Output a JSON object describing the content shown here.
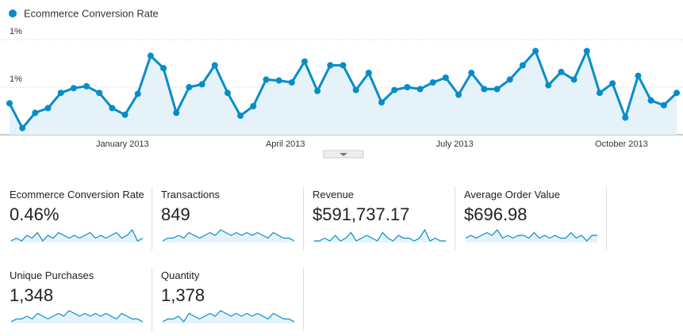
{
  "chart_data": {
    "type": "line",
    "series": [
      {
        "name": "Ecommerce Conversion Rate",
        "color": "#058dc7",
        "values": [
          0.33,
          0.07,
          0.23,
          0.28,
          0.44,
          0.49,
          0.51,
          0.44,
          0.28,
          0.21,
          0.43,
          0.83,
          0.7,
          0.23,
          0.5,
          0.53,
          0.73,
          0.44,
          0.2,
          0.3,
          0.58,
          0.57,
          0.55,
          0.77,
          0.46,
          0.73,
          0.73,
          0.47,
          0.65,
          0.34,
          0.47,
          0.5,
          0.48,
          0.55,
          0.6,
          0.42,
          0.65,
          0.48,
          0.48,
          0.58,
          0.73,
          0.88,
          0.52,
          0.66,
          0.58,
          0.88,
          0.44,
          0.54,
          0.18,
          0.62,
          0.36,
          0.31,
          0.44
        ]
      }
    ],
    "xlim": [
      0,
      52
    ],
    "xticks": [
      {
        "value": 8.8,
        "label": "January 2013"
      },
      {
        "value": 21.5,
        "label": "April 2013"
      },
      {
        "value": 34.7,
        "label": "July 2013"
      },
      {
        "value": 47.7,
        "label": "October 2013"
      }
    ],
    "ylim": [
      0,
      1.125
    ],
    "yticks": [
      {
        "value": 1.0,
        "label": "1%"
      },
      {
        "value": 0.5,
        "label": "1%"
      }
    ],
    "grid": true
  },
  "scorecards": [
    {
      "label": "Ecommerce Conversion Rate",
      "value": "0.46%",
      "sparkline": [
        4,
        5,
        4,
        6,
        5,
        7,
        4,
        6,
        5,
        7,
        6,
        5,
        6,
        5,
        6,
        7,
        5,
        6,
        5,
        6,
        7,
        5,
        6,
        8,
        4,
        5
      ]
    },
    {
      "label": "Transactions",
      "value": "849",
      "sparkline": [
        3,
        4,
        4,
        5,
        4,
        6,
        5,
        4,
        5,
        6,
        5,
        7,
        6,
        5,
        6,
        5,
        6,
        5,
        6,
        5,
        4,
        6,
        5,
        4,
        4,
        3
      ]
    },
    {
      "label": "Revenue",
      "value": "$591,737.17",
      "sparkline": [
        3,
        3,
        4,
        3,
        5,
        3,
        4,
        6,
        3,
        4,
        5,
        4,
        3,
        6,
        4,
        3,
        5,
        4,
        4,
        3,
        4,
        7,
        3,
        4,
        3,
        3
      ]
    },
    {
      "label": "Average Order Value",
      "value": "$696.98",
      "sparkline": [
        5,
        6,
        5,
        6,
        7,
        6,
        8,
        5,
        6,
        5,
        6,
        6,
        5,
        7,
        5,
        6,
        5,
        6,
        5,
        5,
        7,
        5,
        6,
        4,
        6,
        6
      ]
    },
    {
      "label": "Unique Purchases",
      "value": "1,348",
      "sparkline": [
        3,
        4,
        4,
        5,
        4,
        6,
        5,
        4,
        5,
        6,
        5,
        7,
        6,
        5,
        6,
        5,
        6,
        5,
        6,
        5,
        4,
        6,
        5,
        4,
        4,
        3
      ]
    },
    {
      "label": "Quantity",
      "value": "1,378",
      "sparkline": [
        3,
        4,
        4,
        5,
        3,
        6,
        5,
        4,
        5,
        6,
        5,
        7,
        6,
        5,
        6,
        5,
        6,
        5,
        6,
        5,
        4,
        6,
        5,
        4,
        4,
        3
      ]
    }
  ]
}
